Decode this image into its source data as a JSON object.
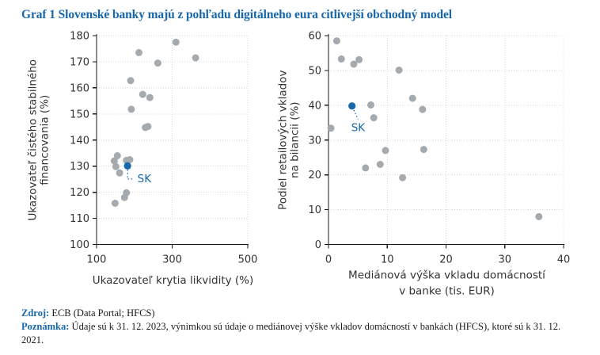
{
  "title": "Graf 1 Slovenské banky majú z pohľadu digitálneho eura citlivejší obchodný model",
  "colors": {
    "accent_blue": "#1767ad",
    "point_gray": "#a5aaaf",
    "grid": "#d7d7d7",
    "axis": "#1a1a1a",
    "tick_text": "#333333"
  },
  "footer": {
    "source_label": "Zdroj:",
    "source_text": "ECB (Data Portal; HFCS)",
    "note_label": "Poznámka:",
    "note_text": "Údaje sú k 31. 12. 2023, výnimkou sú údaje o mediánovej výške vkladov domácností v bankách (HFCS), ktoré sú k 31. 12. 2021."
  },
  "chart_data": [
    {
      "type": "scatter",
      "xlabel": [
        "Ukazovateľ krytia likvidity (%)"
      ],
      "ylabel": [
        "Ukazovateľ čistého stabilného",
        "financovania (%)"
      ],
      "xlim": [
        100,
        500
      ],
      "ylim": [
        100,
        180
      ],
      "xticks": [
        100,
        300,
        500
      ],
      "yticks": [
        100,
        110,
        120,
        130,
        140,
        150,
        160,
        170,
        180
      ],
      "grid": "dotted",
      "legend": false,
      "points": [
        [
          310,
          177.5
        ],
        [
          212,
          173.5
        ],
        [
          362,
          171.5
        ],
        [
          262,
          169.5
        ],
        [
          190,
          162.8
        ],
        [
          222,
          157.5
        ],
        [
          241,
          156.3
        ],
        [
          192,
          151.8
        ],
        [
          229,
          144.8
        ],
        [
          236,
          145.2
        ],
        [
          155,
          134.0
        ],
        [
          147,
          132.0
        ],
        [
          179,
          132.2
        ],
        [
          188,
          132.5
        ],
        [
          151,
          129.8
        ],
        [
          161,
          127.4
        ],
        [
          174,
          118.0
        ],
        [
          179,
          119.8
        ],
        [
          149,
          115.8
        ]
      ],
      "highlight": {
        "label": "SK",
        "point": [
          182,
          130.1
        ]
      }
    },
    {
      "type": "scatter",
      "xlabel": [
        "Mediánová výška vkladu domácností",
        "v banke (tis. EUR)"
      ],
      "ylabel": [
        "Podiel retailových vkladov",
        "na bilancii (%)"
      ],
      "xlim": [
        0,
        40
      ],
      "ylim": [
        0,
        60
      ],
      "xticks": [
        0,
        10,
        20,
        30,
        40
      ],
      "yticks": [
        0,
        10,
        20,
        30,
        40,
        50,
        60
      ],
      "grid": "dotted",
      "legend": false,
      "points": [
        [
          1.4,
          58.5
        ],
        [
          2.2,
          53.3
        ],
        [
          4.3,
          51.8
        ],
        [
          5.2,
          53.1
        ],
        [
          12.0,
          50.1
        ],
        [
          14.3,
          42.0
        ],
        [
          7.2,
          40.1
        ],
        [
          16.0,
          38.8
        ],
        [
          7.7,
          36.4
        ],
        [
          0.4,
          33.4
        ],
        [
          9.7,
          27.0
        ],
        [
          16.2,
          27.3
        ],
        [
          8.8,
          23.0
        ],
        [
          6.3,
          22.0
        ],
        [
          12.6,
          19.2
        ],
        [
          35.8,
          8.0
        ]
      ],
      "highlight": {
        "label": "SK",
        "point": [
          4,
          39.8
        ]
      }
    }
  ]
}
